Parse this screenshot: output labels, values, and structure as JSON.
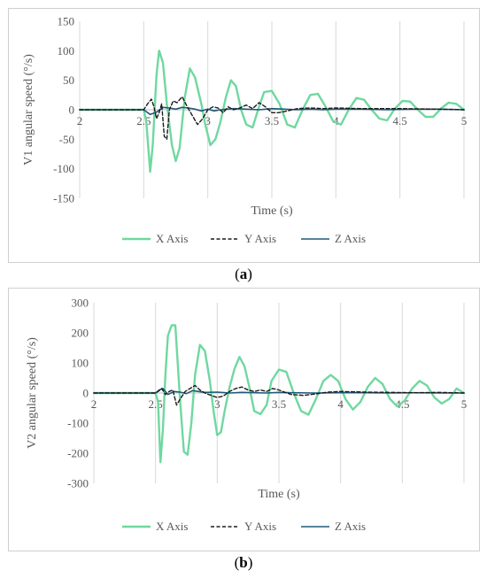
{
  "colors": {
    "x_axis": "#6fd8a0",
    "y_axis": "#1a1a1a",
    "z_axis": "#1f5a78",
    "grid": "#d9d9d9",
    "zero_axis": "#bfbfbf"
  },
  "captions": [
    {
      "open": "(",
      "letter": "a",
      "close": ")"
    },
    {
      "open": "(",
      "letter": "b",
      "close": ")"
    }
  ],
  "chart_data": [
    {
      "type": "line",
      "title": "",
      "xlabel": "Time (s)",
      "ylabel": "V1 angular speed (°/s)",
      "xlim": [
        2,
        5
      ],
      "ylim": [
        -150,
        150
      ],
      "x_ticks": [
        2,
        2.5,
        3,
        3.5,
        4,
        4.5,
        5
      ],
      "x_tick_labels": [
        "2",
        "2.5",
        "3",
        "3.5",
        "4",
        "4.5",
        "5"
      ],
      "y_ticks": [
        -150,
        -100,
        -50,
        0,
        50,
        100,
        150
      ],
      "y_tick_labels": [
        "-150",
        "-100",
        "-50",
        "0",
        "50",
        "100",
        "150"
      ],
      "grid": "vertical",
      "legend_position": "bottom",
      "series": [
        {
          "name": "X Axis",
          "style": "solid",
          "x": [
            2.0,
            2.4,
            2.5,
            2.52,
            2.55,
            2.57,
            2.6,
            2.62,
            2.65,
            2.68,
            2.72,
            2.75,
            2.78,
            2.82,
            2.86,
            2.9,
            2.95,
            2.98,
            3.02,
            3.06,
            3.1,
            3.14,
            3.18,
            3.22,
            3.26,
            3.3,
            3.35,
            3.4,
            3.44,
            3.5,
            3.56,
            3.62,
            3.68,
            3.74,
            3.8,
            3.86,
            3.92,
            3.98,
            4.04,
            4.1,
            4.16,
            4.22,
            4.28,
            4.34,
            4.4,
            4.46,
            4.52,
            4.58,
            4.64,
            4.7,
            4.76,
            4.82,
            4.88,
            4.94,
            5.0
          ],
          "y": [
            0,
            0,
            0,
            -20,
            -105,
            -60,
            60,
            100,
            80,
            10,
            -60,
            -87,
            -65,
            20,
            70,
            55,
            10,
            -25,
            -60,
            -50,
            -20,
            20,
            50,
            40,
            0,
            -25,
            -30,
            5,
            30,
            32,
            10,
            -25,
            -30,
            0,
            25,
            27,
            5,
            -20,
            -25,
            0,
            20,
            17,
            0,
            -15,
            -18,
            2,
            15,
            14,
            0,
            -12,
            -12,
            2,
            12,
            10,
            0
          ]
        },
        {
          "name": "Y Axis",
          "style": "dashed",
          "x": [
            2.0,
            2.5,
            2.53,
            2.56,
            2.58,
            2.6,
            2.62,
            2.64,
            2.66,
            2.68,
            2.7,
            2.73,
            2.76,
            2.8,
            2.84,
            2.88,
            2.92,
            2.96,
            3.0,
            3.04,
            3.08,
            3.12,
            3.16,
            3.2,
            3.25,
            3.3,
            3.35,
            3.4,
            3.45,
            3.5,
            3.55,
            3.6,
            3.7,
            3.8,
            3.9,
            4.0,
            4.2,
            4.5,
            4.8,
            5.0
          ],
          "y": [
            0,
            0,
            10,
            18,
            5,
            -15,
            -5,
            10,
            -45,
            -50,
            0,
            15,
            12,
            22,
            5,
            -10,
            -25,
            -15,
            0,
            5,
            3,
            -5,
            5,
            0,
            3,
            8,
            2,
            12,
            5,
            -5,
            -5,
            -3,
            2,
            3,
            2,
            3,
            2,
            2,
            1,
            0
          ]
        },
        {
          "name": "Z Axis",
          "style": "solid",
          "x": [
            2.0,
            2.5,
            2.55,
            2.6,
            2.65,
            2.7,
            2.75,
            2.8,
            2.85,
            2.9,
            2.95,
            3.0,
            3.05,
            3.1,
            3.2,
            3.3,
            3.4,
            3.5,
            3.6,
            3.7,
            3.8,
            3.9,
            4.0,
            4.2,
            4.4,
            4.6,
            4.8,
            5.0
          ],
          "y": [
            0,
            0,
            -8,
            -4,
            4,
            3,
            1,
            4,
            3,
            1,
            -2,
            1,
            -2,
            0,
            2,
            1,
            0,
            2,
            1,
            0,
            1,
            0,
            1,
            1,
            0,
            1,
            1,
            0
          ]
        }
      ]
    },
    {
      "type": "line",
      "title": "",
      "xlabel": "Time (s)",
      "ylabel": "V2 angular speed (°/s)",
      "xlim": [
        2,
        5
      ],
      "ylim": [
        -300,
        300
      ],
      "x_ticks": [
        2,
        2.5,
        3,
        3.5,
        4,
        4.5,
        5
      ],
      "x_tick_labels": [
        "2",
        "2.5",
        "3",
        "3.5",
        "4",
        "4.5",
        "5"
      ],
      "y_ticks": [
        -300,
        -200,
        -100,
        0,
        100,
        200,
        300
      ],
      "y_tick_labels": [
        "-300",
        "-200",
        "-100",
        "0",
        "100",
        "200",
        "300"
      ],
      "grid": "vertical",
      "legend_position": "bottom",
      "series": [
        {
          "name": "X Axis",
          "style": "solid",
          "x": [
            2.0,
            2.4,
            2.5,
            2.52,
            2.54,
            2.56,
            2.58,
            2.6,
            2.63,
            2.66,
            2.68,
            2.7,
            2.73,
            2.76,
            2.79,
            2.82,
            2.86,
            2.9,
            2.94,
            2.97,
            3.0,
            3.03,
            3.06,
            3.1,
            3.14,
            3.18,
            3.22,
            3.26,
            3.3,
            3.35,
            3.4,
            3.44,
            3.5,
            3.56,
            3.62,
            3.68,
            3.74,
            3.8,
            3.86,
            3.92,
            3.98,
            4.04,
            4.1,
            4.16,
            4.22,
            4.28,
            4.34,
            4.4,
            4.46,
            4.52,
            4.58,
            4.64,
            4.7,
            4.76,
            4.82,
            4.88,
            4.94,
            5.0
          ],
          "y": [
            0,
            0,
            0,
            -30,
            -230,
            -120,
            60,
            190,
            225,
            225,
            100,
            -30,
            -195,
            -205,
            -100,
            60,
            160,
            140,
            40,
            -60,
            -140,
            -130,
            -60,
            20,
            80,
            120,
            90,
            20,
            -60,
            -70,
            -40,
            40,
            78,
            70,
            0,
            -60,
            -72,
            -20,
            40,
            60,
            40,
            -20,
            -55,
            -30,
            20,
            50,
            30,
            -20,
            -45,
            -25,
            15,
            40,
            25,
            -15,
            -35,
            -20,
            15,
            0
          ]
        },
        {
          "name": "Y Axis",
          "style": "dashed",
          "x": [
            2.0,
            2.5,
            2.52,
            2.55,
            2.58,
            2.61,
            2.64,
            2.67,
            2.7,
            2.74,
            2.78,
            2.82,
            2.86,
            2.9,
            2.95,
            3.0,
            3.05,
            3.1,
            3.15,
            3.2,
            3.25,
            3.3,
            3.35,
            3.4,
            3.45,
            3.5,
            3.55,
            3.6,
            3.7,
            3.8,
            3.9,
            4.0,
            4.2,
            4.4,
            4.6,
            4.8,
            5.0
          ],
          "y": [
            0,
            0,
            5,
            15,
            -5,
            5,
            10,
            -40,
            -20,
            5,
            15,
            25,
            10,
            0,
            -8,
            -15,
            -10,
            5,
            15,
            20,
            10,
            5,
            10,
            5,
            15,
            10,
            2,
            -5,
            -8,
            -3,
            3,
            5,
            3,
            2,
            1,
            2,
            0
          ]
        },
        {
          "name": "Z Axis",
          "style": "solid",
          "x": [
            2.0,
            2.5,
            2.53,
            2.56,
            2.6,
            2.65,
            2.7,
            2.75,
            2.8,
            2.85,
            2.9,
            3.0,
            3.1,
            3.2,
            3.3,
            3.4,
            3.5,
            3.6,
            3.8,
            4.0,
            4.2,
            4.4,
            4.6,
            4.8,
            5.0
          ],
          "y": [
            0,
            0,
            10,
            15,
            -5,
            5,
            3,
            -2,
            8,
            5,
            2,
            3,
            0,
            2,
            1,
            0,
            2,
            1,
            0,
            1,
            1,
            0,
            1,
            0,
            0
          ]
        }
      ]
    }
  ]
}
